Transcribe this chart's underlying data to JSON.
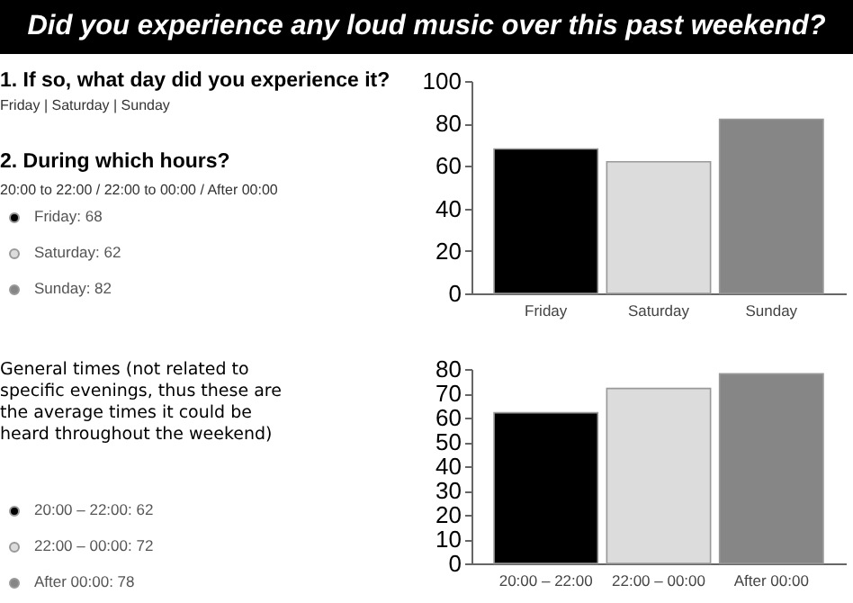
{
  "chart_data": [
    {
      "type": "bar",
      "title": "Did you experience any loud music over this past weekend?",
      "categories": [
        "Friday",
        "Saturday",
        "Sunday"
      ],
      "values": [
        68,
        62,
        82
      ],
      "colors": [
        "#000000",
        "#dcdcdc",
        "#868686"
      ],
      "ylim": [
        0,
        100
      ],
      "yticks": [
        0,
        20,
        40,
        60,
        80,
        100
      ],
      "grid": false,
      "annotations": [
        "1. If so, what day did you experience it?",
        "Friday | Saturday | Sunday",
        "2. During which hours?",
        "20:00 to 22:00 / 22:00 to 00:00 / After 00:00",
        "Friday: 68",
        "Saturday: 62",
        "Sunday: 82"
      ]
    },
    {
      "type": "bar",
      "categories": [
        "20:00 – 22:00",
        "22:00 – 00:00",
        "After 00:00"
      ],
      "values": [
        62,
        72,
        78
      ],
      "colors": [
        "#000000",
        "#dcdcdc",
        "#868686"
      ],
      "ylim": [
        0,
        80
      ],
      "yticks": [
        0,
        10,
        20,
        30,
        40,
        50,
        60,
        70,
        80
      ],
      "grid": false,
      "annotations": [
        "General times (not related to specific evenings, thus these are the average times it could be heard throughout the weekend)",
        "20:00 – 22:00: 62",
        "22:00 – 00:00: 72",
        "After 00:00: 78"
      ]
    }
  ]
}
